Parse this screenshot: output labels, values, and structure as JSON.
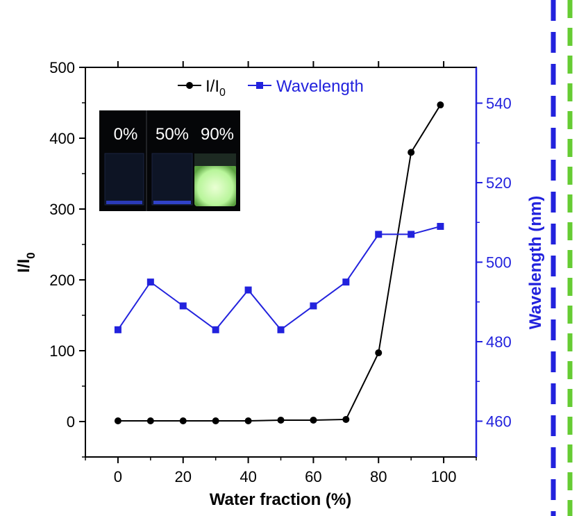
{
  "chart_data": {
    "type": "line",
    "x": [
      0,
      10,
      20,
      30,
      40,
      50,
      60,
      70,
      80,
      90,
      99
    ],
    "xlabel": "Water fraction (%)",
    "xticks": [
      0,
      20,
      40,
      60,
      80,
      100
    ],
    "xlim": [
      -10,
      110
    ],
    "ylabel_left": {
      "base": "I/I",
      "subscript": "0"
    },
    "ylim_left": [
      -50,
      500
    ],
    "yticks_left": [
      0,
      100,
      200,
      300,
      400,
      500
    ],
    "ylabel_right": "Wavelength (nm)",
    "ylim_right": [
      451,
      549
    ],
    "yticks_right": [
      460,
      480,
      500,
      520,
      540
    ],
    "series": [
      {
        "name": "I/I0",
        "legend_label": {
          "base": "I/I",
          "subscript": "0"
        },
        "axis": "left",
        "marker": "circle",
        "color": "#000000",
        "values": [
          1,
          1,
          1,
          1,
          1,
          2,
          2,
          3,
          97,
          380,
          447
        ]
      },
      {
        "name": "Wavelength",
        "legend_label": {
          "base": "Wavelength",
          "subscript": ""
        },
        "axis": "right",
        "marker": "square",
        "color": "#2222dd",
        "values": [
          483,
          495,
          489,
          483,
          493,
          483,
          489,
          495,
          507,
          507,
          509
        ]
      }
    ],
    "legend_position": "top",
    "inset": {
      "description": "photo of vials under UV light",
      "labels": [
        "0%",
        "50%",
        "90%"
      ]
    },
    "colors": {
      "right_axis": "#2222dd",
      "left_axis": "#000000",
      "dash_blue": "#2222dd",
      "dash_green": "#66cc33"
    }
  }
}
